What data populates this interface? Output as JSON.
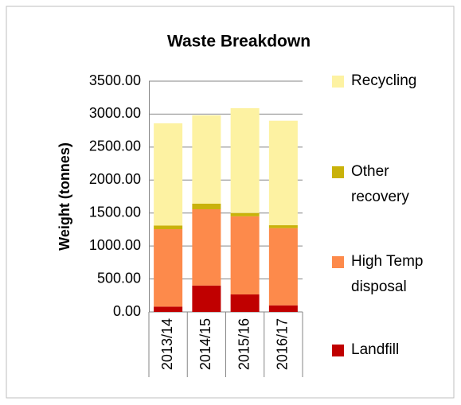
{
  "chart_data": {
    "type": "stacked_bar",
    "title": "Waste Breakdown",
    "y_label": "Weight (tonnes)",
    "categories": [
      "2013/14",
      "2014/15",
      "2015/16",
      "2016/17"
    ],
    "series": [
      {
        "name": "Landfill",
        "color": "#c00000",
        "values": [
          80,
          400,
          265,
          100
        ]
      },
      {
        "name": "High Temp disposal",
        "color": "#fd8a4b",
        "values": [
          1175,
          1157,
          1185,
          1170
        ]
      },
      {
        "name": "Other recovery",
        "color": "#c9b20a",
        "values": [
          55,
          85,
          50,
          45
        ]
      },
      {
        "name": "Recycling",
        "color": "#fdf2a2",
        "values": [
          1550,
          1340,
          1590,
          1585
        ]
      }
    ],
    "ylim": [
      0,
      3500
    ],
    "yticks": [
      {
        "value": 0,
        "label": "0.00"
      },
      {
        "value": 500,
        "label": "500.00"
      },
      {
        "value": 1000,
        "label": "1000.00"
      },
      {
        "value": 1500,
        "label": "1500.00"
      },
      {
        "value": 2000,
        "label": "2000.00"
      },
      {
        "value": 2500,
        "label": "2500.00"
      },
      {
        "value": 3000,
        "label": "3000.00"
      },
      {
        "value": 3500,
        "label": "3500.00"
      }
    ],
    "grid": true,
    "legend": "right"
  }
}
